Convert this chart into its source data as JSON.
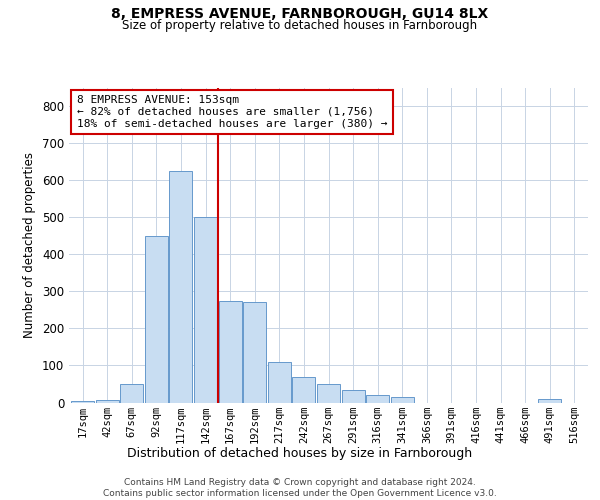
{
  "title1": "8, EMPRESS AVENUE, FARNBOROUGH, GU14 8LX",
  "title2": "Size of property relative to detached houses in Farnborough",
  "xlabel": "Distribution of detached houses by size in Farnborough",
  "ylabel": "Number of detached properties",
  "footnote": "Contains HM Land Registry data © Crown copyright and database right 2024.\nContains public sector information licensed under the Open Government Licence v3.0.",
  "bar_color": "#c8ddf2",
  "bar_edge_color": "#6699cc",
  "vline_color": "#cc0000",
  "ann_edge_color": "#cc0000",
  "annotation_text": "8 EMPRESS AVENUE: 153sqm\n← 82% of detached houses are smaller (1,756)\n18% of semi-detached houses are larger (380) →",
  "categories": [
    "17sqm",
    "42sqm",
    "67sqm",
    "92sqm",
    "117sqm",
    "142sqm",
    "167sqm",
    "192sqm",
    "217sqm",
    "242sqm",
    "267sqm",
    "291sqm",
    "316sqm",
    "341sqm",
    "366sqm",
    "391sqm",
    "416sqm",
    "441sqm",
    "466sqm",
    "491sqm",
    "516sqm"
  ],
  "bar_heights": [
    5,
    8,
    50,
    450,
    625,
    500,
    275,
    270,
    110,
    70,
    50,
    35,
    20,
    15,
    0,
    0,
    0,
    0,
    0,
    10,
    0
  ],
  "vline_index": 5.5,
  "ylim": [
    0,
    850
  ],
  "yticks": [
    0,
    100,
    200,
    300,
    400,
    500,
    600,
    700,
    800
  ],
  "grid_color": "#c8d4e4",
  "background_color": "#ffffff",
  "figsize": [
    6.0,
    5.0
  ],
  "dpi": 100
}
